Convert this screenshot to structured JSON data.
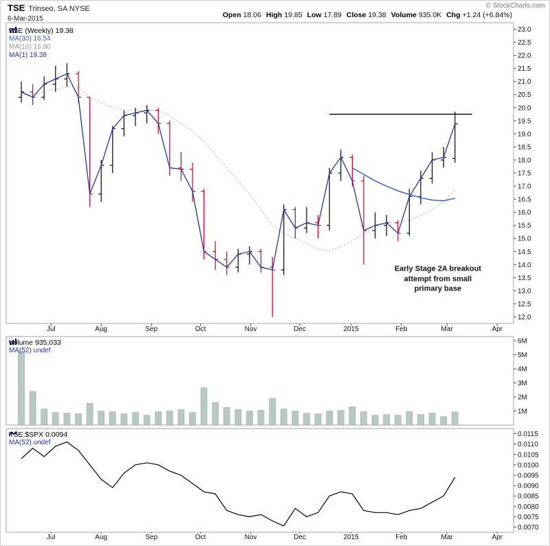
{
  "header": {
    "symbol": "TSE",
    "company": "Trinseo, SA NYSE",
    "date": "6-Mar-2015",
    "copyright": "© StockCharts.com",
    "quote": [
      {
        "label": "Open",
        "value": "18.06"
      },
      {
        "label": "High",
        "value": "19.85"
      },
      {
        "label": "Low",
        "value": "17.89"
      },
      {
        "label": "Close",
        "value": "19.38"
      },
      {
        "label": "Volume",
        "value": "935.0K"
      },
      {
        "label": "Chg",
        "value": "+1.24 (+6.84%)"
      }
    ]
  },
  "colors": {
    "up": "#000000",
    "down": "#cc0022",
    "close_line": "#2433a0",
    "ma30": "#3a5fcd",
    "ma10": "#c4c4c4",
    "volume_bar": "#b7c9c2",
    "volume_bar_border": "#95aaa3",
    "ratio_line": "#000000",
    "panel_border": "#a0a0a0",
    "axis_text": "#111111",
    "resistance": "#000000"
  },
  "chart_data": [
    {
      "type": "ohlc",
      "title": "TSE (Weekly)",
      "legend": [
        {
          "label": "TSE (Weekly) 19.38",
          "color": "#000000",
          "icon": "bars"
        },
        {
          "label": "MA(30) 16.54",
          "color": "#3a5fcd",
          "icon": "line"
        },
        {
          "label": "MA(10) 16.90",
          "color": "#999999",
          "icon": "dotted"
        },
        {
          "label": "MA(1) 19.38",
          "color": "#2433a0",
          "icon": "line"
        }
      ],
      "ylim": [
        11.75,
        23.25
      ],
      "y_ticks": [
        23.0,
        22.5,
        22.0,
        21.5,
        21.0,
        20.5,
        20.0,
        19.5,
        19.0,
        18.5,
        18.0,
        17.5,
        17.0,
        16.5,
        16.0,
        15.5,
        15.0,
        14.5,
        14.0,
        13.5,
        13.0,
        12.5,
        12.0
      ],
      "x_ticks": [
        {
          "label": "Jul",
          "week": 2.6
        },
        {
          "label": "Aug",
          "week": 7.0
        },
        {
          "label": "Sep",
          "week": 11.4
        },
        {
          "label": "Oct",
          "week": 15.7
        },
        {
          "label": "Nov",
          "week": 20.1
        },
        {
          "label": "Dec",
          "week": 24.4
        },
        {
          "label": "2015",
          "week": 28.9
        },
        {
          "label": "Feb",
          "week": 33.3
        },
        {
          "label": "Mar",
          "week": 37.3
        },
        {
          "label": "Apr",
          "week": 41.7
        }
      ],
      "open": [
        20.4,
        20.6,
        20.4,
        20.9,
        21.1,
        21.3,
        20.4,
        16.7,
        17.8,
        19.2,
        19.7,
        19.8,
        19.9,
        19.4,
        17.7,
        17.65,
        16.8,
        14.5,
        14.2,
        13.9,
        14.4,
        14.5,
        13.9,
        13.8,
        16.1,
        15.4,
        15.6,
        15.5,
        17.5,
        18.1,
        17.2,
        15.3,
        15.5,
        15.6,
        15.2,
        16.6,
        17.3,
        18.0,
        18.06
      ],
      "high": [
        21.0,
        20.9,
        21.2,
        21.6,
        21.7,
        21.4,
        20.4,
        18.0,
        19.3,
        19.9,
        20.0,
        20.1,
        20.0,
        19.5,
        18.3,
        17.9,
        16.9,
        14.9,
        14.5,
        14.6,
        14.7,
        14.6,
        14.3,
        16.3,
        16.2,
        16.2,
        15.9,
        17.7,
        18.4,
        18.2,
        17.4,
        16.0,
        15.9,
        15.7,
        16.9,
        17.6,
        18.3,
        18.5,
        19.85
      ],
      "low": [
        20.2,
        20.1,
        20.3,
        20.6,
        20.8,
        20.2,
        16.2,
        16.4,
        17.5,
        18.9,
        19.3,
        19.4,
        19.0,
        17.4,
        17.2,
        16.4,
        14.2,
        13.8,
        13.6,
        13.7,
        14.0,
        13.7,
        12.0,
        13.6,
        15.0,
        15.2,
        15.0,
        15.3,
        17.2,
        17.0,
        14.0,
        15.0,
        15.1,
        14.9,
        15.1,
        16.3,
        17.1,
        17.7,
        17.89
      ],
      "close": [
        20.6,
        20.4,
        20.9,
        21.1,
        21.3,
        20.4,
        16.7,
        17.8,
        19.2,
        19.7,
        19.8,
        19.9,
        19.4,
        17.7,
        17.65,
        16.8,
        14.5,
        14.2,
        13.9,
        14.4,
        14.5,
        13.9,
        13.8,
        16.1,
        15.4,
        15.6,
        15.5,
        17.5,
        18.1,
        17.2,
        15.3,
        15.5,
        15.6,
        15.2,
        16.6,
        17.3,
        18.0,
        18.1,
        19.38
      ],
      "ma10": [
        20.5,
        20.5,
        20.6,
        20.7,
        20.8,
        20.8,
        20.4,
        20.2,
        20.0,
        19.9,
        19.9,
        19.9,
        19.9,
        19.7,
        19.4,
        19.1,
        18.7,
        18.2,
        17.7,
        17.2,
        16.7,
        16.1,
        15.5,
        15.2,
        15.0,
        14.8,
        14.6,
        14.5,
        14.7,
        14.9,
        15.2,
        15.4,
        15.6,
        15.6,
        15.7,
        15.9,
        16.1,
        16.4,
        16.9
      ],
      "ma30": [
        null,
        null,
        null,
        null,
        null,
        null,
        null,
        null,
        null,
        null,
        null,
        null,
        null,
        null,
        null,
        null,
        null,
        null,
        null,
        null,
        null,
        null,
        null,
        null,
        null,
        null,
        null,
        null,
        null,
        17.7,
        17.45,
        17.2,
        17.0,
        16.82,
        16.68,
        16.56,
        16.47,
        16.44,
        16.54
      ],
      "resistance_line": {
        "price": 19.75,
        "week_start": 27,
        "week_end": 39.5
      },
      "annotation": {
        "text": "Early Stage 2A breakout\nattempt from small\nprimary base",
        "week": 36.5,
        "price": 13.45
      }
    },
    {
      "type": "bar",
      "title": "Volume",
      "legend": [
        {
          "label": "Volume 935,033",
          "color": "#000000",
          "icon": "bars"
        },
        {
          "label": "MA(52) undef",
          "color": "#2433a0",
          "icon": "line"
        }
      ],
      "ylim": [
        0,
        6.3
      ],
      "y_ticks": [
        {
          "v": 6,
          "label": "6M"
        },
        {
          "v": 5,
          "label": "5M"
        },
        {
          "v": 4,
          "label": "4M"
        },
        {
          "v": 3,
          "label": "3M"
        },
        {
          "v": 2,
          "label": "2M"
        },
        {
          "v": 1,
          "label": "1M"
        }
      ],
      "values_millions": [
        5.2,
        2.4,
        1.15,
        0.9,
        0.85,
        0.8,
        1.55,
        1.0,
        0.95,
        0.8,
        0.9,
        0.7,
        0.95,
        1.0,
        1.1,
        0.9,
        2.65,
        1.6,
        1.25,
        1.1,
        1.0,
        1.05,
        1.9,
        1.15,
        1.0,
        0.85,
        0.8,
        1.0,
        1.05,
        1.3,
        0.95,
        0.7,
        0.75,
        0.7,
        0.95,
        0.75,
        0.85,
        0.6,
        0.94
      ]
    },
    {
      "type": "line",
      "title": "TSE:$SPX",
      "legend": [
        {
          "label": "TSE:$SPX 0.0094",
          "color": "#000000",
          "icon": "zigzag"
        },
        {
          "label": "MA(52) undef",
          "color": "#2433a0",
          "icon": "line"
        }
      ],
      "ylim": [
        0.00675,
        0.01175
      ],
      "y_ticks": [
        0.0115,
        0.011,
        0.0105,
        0.01,
        0.0095,
        0.009,
        0.0085,
        0.008,
        0.0075,
        0.007
      ],
      "values": [
        0.0103,
        0.0108,
        0.0104,
        0.0109,
        0.0111,
        0.0107,
        0.01,
        0.0093,
        0.0089,
        0.0096,
        0.01,
        0.0101,
        0.01,
        0.0097,
        0.0095,
        0.0091,
        0.0087,
        0.0086,
        0.0078,
        0.0076,
        0.0075,
        0.0076,
        0.0073,
        0.00705,
        0.0079,
        0.0075,
        0.0077,
        0.0085,
        0.0087,
        0.0086,
        0.0078,
        0.0077,
        0.0077,
        0.0076,
        0.0078,
        0.0079,
        0.0082,
        0.0085,
        0.0094
      ]
    }
  ]
}
